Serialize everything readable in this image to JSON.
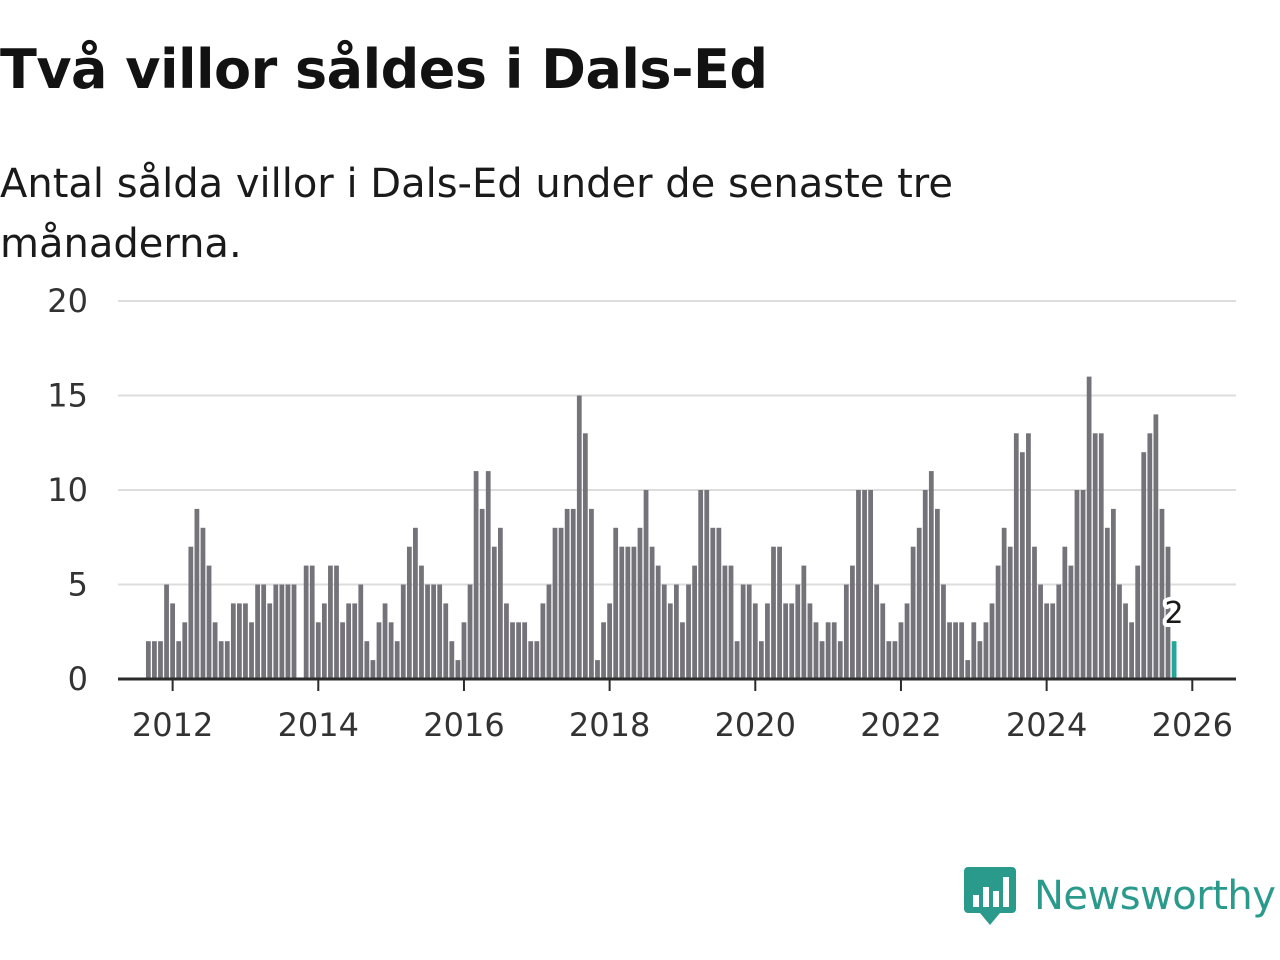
{
  "title": "Två villor såldes i Dals-Ed",
  "subtitle": "Antal sålda villor i Dals-Ed under de senaste tre månaderna.",
  "brand": {
    "name": "Newsworthy",
    "icon": "newsworthy-logo-icon",
    "color": "#2a9a8d"
  },
  "colors": {
    "bar": "#75737a",
    "highlight": "#26a69a",
    "grid": "#dddddd",
    "axis": "#2b2b2b"
  },
  "chart_data": {
    "type": "bar",
    "title": "Två villor såldes i Dals-Ed",
    "subtitle": "Antal sålda villor i Dals-Ed under de senaste tre månaderna.",
    "xlabel": "",
    "ylabel": "",
    "ylim": [
      0,
      20
    ],
    "yticks": [
      0,
      5,
      10,
      15,
      20
    ],
    "xticks": [
      "2012",
      "2014",
      "2016",
      "2018",
      "2020",
      "2022",
      "2024",
      "2026"
    ],
    "x_start": "2011-09",
    "x_end": "2025-12",
    "x_range_years": [
      2011.25,
      2026.6
    ],
    "grid": true,
    "series": [
      {
        "name": "Antal sålda villor",
        "values": [
          2,
          2,
          2,
          5,
          4,
          2,
          3,
          7,
          9,
          8,
          6,
          3,
          2,
          2,
          4,
          4,
          4,
          3,
          5,
          5,
          4,
          5,
          5,
          5,
          5,
          0,
          6,
          6,
          3,
          4,
          6,
          6,
          3,
          4,
          4,
          5,
          2,
          1,
          3,
          4,
          3,
          2,
          5,
          7,
          8,
          6,
          5,
          5,
          5,
          4,
          2,
          1,
          3,
          5,
          11,
          9,
          11,
          7,
          8,
          4,
          3,
          3,
          3,
          2,
          2,
          4,
          5,
          8,
          8,
          9,
          9,
          15,
          13,
          9,
          1,
          3,
          4,
          8,
          7,
          7,
          7,
          8,
          10,
          7,
          6,
          5,
          4,
          5,
          3,
          5,
          6,
          10,
          10,
          8,
          8,
          6,
          6,
          2,
          5,
          5,
          4,
          2,
          4,
          7,
          7,
          4,
          4,
          5,
          6,
          4,
          3,
          2,
          3,
          3,
          2,
          5,
          6,
          10,
          10,
          10,
          5,
          4,
          2,
          2,
          3,
          4,
          7,
          8,
          10,
          11,
          9,
          5,
          3,
          3,
          3,
          1,
          3,
          2,
          3,
          4,
          6,
          8,
          7,
          13,
          12,
          13,
          7,
          5,
          4,
          4,
          5,
          7,
          6,
          10,
          10,
          16,
          13,
          13,
          8,
          9,
          5,
          4,
          3,
          6,
          12,
          13,
          14,
          9,
          7,
          2
        ]
      }
    ],
    "highlight": {
      "label": "2",
      "value": 2,
      "period": "2025-12"
    }
  }
}
